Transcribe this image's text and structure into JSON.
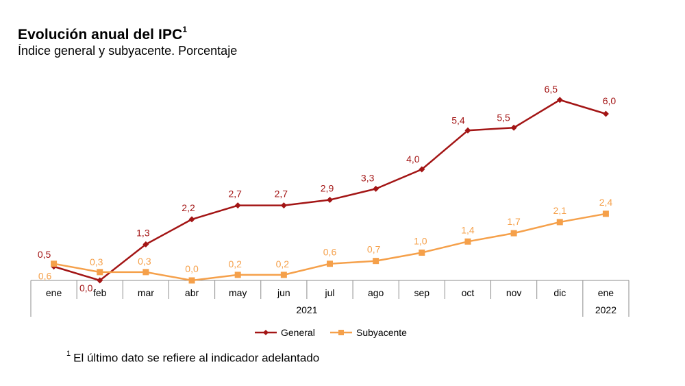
{
  "header": {
    "title": "Evolución anual del IPC",
    "title_sup": "1",
    "subtitle": "Índice general y subyacente. Porcentaje"
  },
  "footnote": {
    "sup": "1",
    "text": "El último dato se refiere al indicador adelantado"
  },
  "chart_data": {
    "type": "line",
    "categories": [
      "ene",
      "feb",
      "mar",
      "abr",
      "may",
      "jun",
      "jul",
      "ago",
      "sep",
      "oct",
      "nov",
      "dic",
      "ene"
    ],
    "year_groups": [
      {
        "label": "2021",
        "start": 0,
        "end": 11
      },
      {
        "label": "2022",
        "start": 12,
        "end": 12
      }
    ],
    "series": [
      {
        "name": "General",
        "color": "#a31515",
        "marker": "diamond",
        "values": [
          0.5,
          0.0,
          1.3,
          2.2,
          2.7,
          2.7,
          2.9,
          3.3,
          4.0,
          5.4,
          5.5,
          6.5,
          6.0
        ],
        "labels": [
          "0,5",
          "0,0",
          "1,3",
          "2,2",
          "2,7",
          "2,7",
          "2,9",
          "3,3",
          "4,0",
          "5,4",
          "5,5",
          "6,5",
          "6,0"
        ]
      },
      {
        "name": "Subyacente",
        "color": "#f5a04a",
        "marker": "square",
        "values": [
          0.6,
          0.3,
          0.3,
          0.0,
          0.2,
          0.2,
          0.6,
          0.7,
          1.0,
          1.4,
          1.7,
          2.1,
          2.4
        ],
        "labels": [
          "0,6",
          "0,3",
          "0,3",
          "0,0",
          "0,2",
          "0,2",
          "0,6",
          "0,7",
          "1,0",
          "1,4",
          "1,7",
          "2,1",
          "2,4"
        ]
      }
    ],
    "ylim": [
      0,
      7
    ],
    "legend": "bottom-center",
    "grid": false
  }
}
